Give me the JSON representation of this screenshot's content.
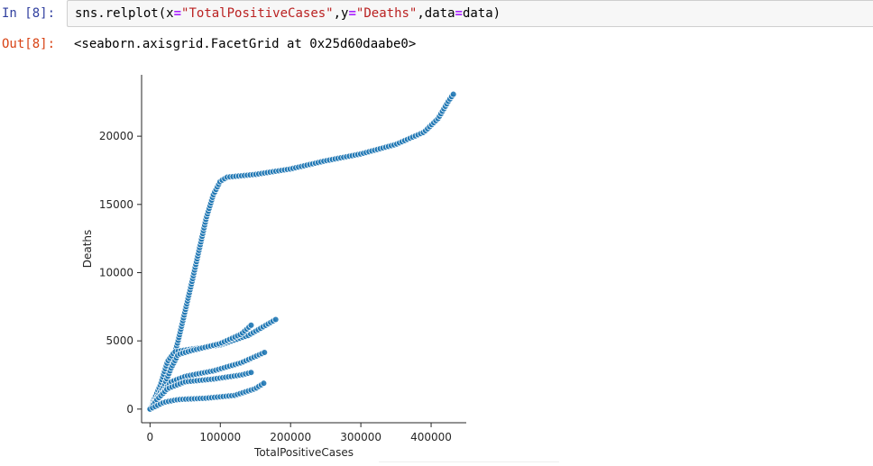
{
  "notebook": {
    "in_prompt": "In [8]:",
    "out_prompt": "Out[8]:",
    "code": {
      "func": "sns.relplot(",
      "x_kw": "x",
      "eq1": "=",
      "x_val": "\"TotalPositiveCases\"",
      "comma1": ",",
      "y_kw": "y",
      "eq2": "=",
      "y_val": "\"Deaths\"",
      "comma2": ",",
      "data_kw": "data",
      "eq3": "=",
      "data_val": "data)"
    },
    "output_repr": "<seaborn.axisgrid.FacetGrid at 0x25d60daabe0>"
  },
  "colors": {
    "in_prompt": "#303f9f",
    "out_prompt": "#d84315",
    "point_fill": "#1f77b4",
    "string": "#ba2121",
    "operator": "#aa22ff"
  },
  "chart_data": {
    "type": "scatter",
    "xlabel": "TotalPositiveCases",
    "ylabel": "Deaths",
    "xlim": [
      -12000,
      450000
    ],
    "ylim": [
      -1000,
      24500
    ],
    "xticks": [
      0,
      100000,
      200000,
      300000,
      400000
    ],
    "xtick_labels": [
      "0",
      "100000",
      "200000",
      "300000",
      "400000"
    ],
    "yticks": [
      0,
      5000,
      10000,
      15000,
      20000
    ],
    "ytick_labels": [
      "0",
      "5000",
      "10000",
      "15000",
      "20000"
    ],
    "grid": false,
    "series": [
      {
        "polyline": [
          [
            0,
            0
          ],
          [
            10000,
            600
          ],
          [
            20000,
            1800
          ],
          [
            30000,
            3200
          ],
          [
            40000,
            5000
          ],
          [
            50000,
            7200
          ],
          [
            60000,
            9400
          ],
          [
            70000,
            11700
          ],
          [
            80000,
            14000
          ],
          [
            90000,
            15700
          ],
          [
            100000,
            16700
          ],
          [
            110000,
            17000
          ],
          [
            150000,
            17200
          ],
          [
            200000,
            17600
          ],
          [
            250000,
            18200
          ],
          [
            300000,
            18700
          ],
          [
            350000,
            19400
          ],
          [
            390000,
            20300
          ],
          [
            410000,
            21300
          ],
          [
            425000,
            22600
          ],
          [
            432000,
            23100
          ]
        ]
      },
      {
        "polyline": [
          [
            0,
            0
          ],
          [
            15000,
            1800
          ],
          [
            25000,
            3500
          ],
          [
            35000,
            4200
          ],
          [
            60000,
            4400
          ],
          [
            100000,
            4700
          ],
          [
            140000,
            5400
          ],
          [
            180000,
            6600
          ]
        ]
      },
      {
        "polyline": [
          [
            0,
            0
          ],
          [
            20000,
            1700
          ],
          [
            30000,
            3000
          ],
          [
            40000,
            4000
          ],
          [
            60000,
            4300
          ],
          [
            100000,
            4800
          ],
          [
            130000,
            5500
          ],
          [
            145000,
            6200
          ]
        ]
      },
      {
        "polyline": [
          [
            0,
            0
          ],
          [
            15000,
            1000
          ],
          [
            30000,
            2000
          ],
          [
            50000,
            2400
          ],
          [
            90000,
            2800
          ],
          [
            130000,
            3400
          ],
          [
            165000,
            4200
          ]
        ]
      },
      {
        "polyline": [
          [
            0,
            0
          ],
          [
            10000,
            700
          ],
          [
            25000,
            1500
          ],
          [
            50000,
            2000
          ],
          [
            90000,
            2200
          ],
          [
            130000,
            2500
          ],
          [
            145000,
            2700
          ]
        ]
      },
      {
        "polyline": [
          [
            0,
            0
          ],
          [
            20000,
            500
          ],
          [
            40000,
            700
          ],
          [
            80000,
            800
          ],
          [
            120000,
            1000
          ],
          [
            150000,
            1500
          ],
          [
            165000,
            2000
          ]
        ]
      }
    ]
  }
}
